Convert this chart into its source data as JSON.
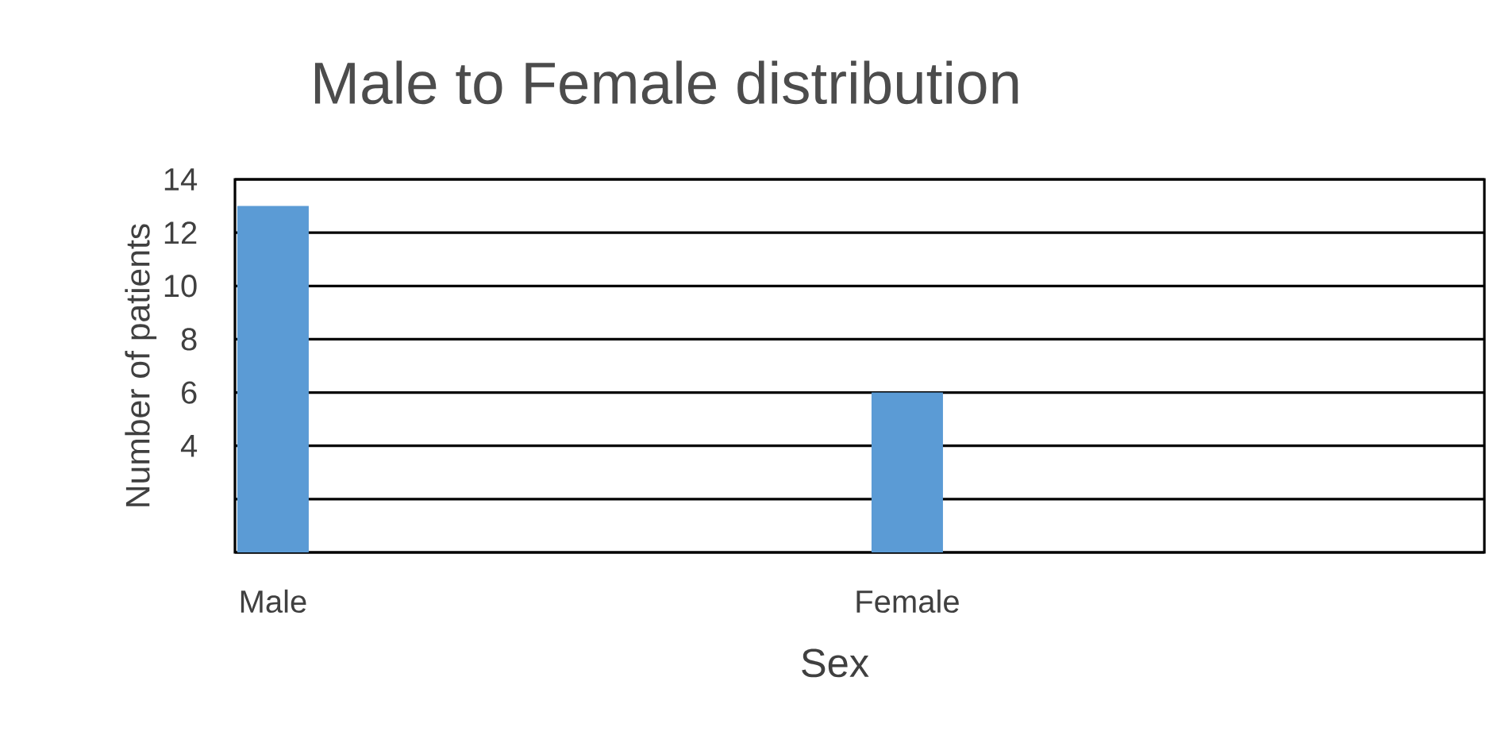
{
  "chart_data": {
    "type": "bar",
    "title": "Male to Female distribution",
    "xlabel": "Sex",
    "ylabel": "Number of patients",
    "categories": [
      "Male",
      "Female"
    ],
    "values": [
      13,
      6
    ],
    "color": "#5b9bd5",
    "ylim": [
      0,
      14
    ],
    "yticks": [
      {
        "value": 0,
        "label": null
      },
      {
        "value": 2,
        "label": null
      },
      {
        "value": 4,
        "label": "4"
      },
      {
        "value": 6,
        "label": "6"
      },
      {
        "value": 8,
        "label": "8"
      },
      {
        "value": 10,
        "label": "10"
      },
      {
        "value": 12,
        "label": "12"
      },
      {
        "value": 14,
        "label": "14"
      }
    ],
    "grid": "y"
  }
}
